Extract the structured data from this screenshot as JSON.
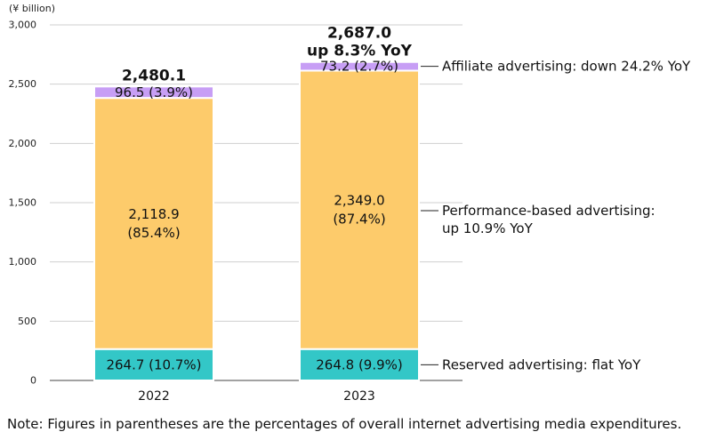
{
  "unit_label": "(¥ billion)",
  "note": "Note: Figures in parentheses are the percentages of overall internet advertising media expenditures.",
  "chart_data": {
    "type": "bar",
    "stacked": true,
    "categories": [
      "2022",
      "2023"
    ],
    "ylim": [
      0,
      3000
    ],
    "yticks": [
      0,
      500,
      1000,
      1500,
      2000,
      2500,
      3000
    ],
    "ytick_labels": [
      "0",
      "500",
      "1,000",
      "1,500",
      "2,000",
      "2,500",
      "3,000"
    ],
    "grid": true,
    "series": [
      {
        "key": "reserved",
        "values": [
          264.7,
          264.8
        ],
        "labels": [
          [
            "264.7 (10.7%)"
          ],
          [
            "264.8 (9.9%)"
          ]
        ],
        "color": "#33c7c7",
        "annotation": [
          "Reserved advertising: flat YoY"
        ]
      },
      {
        "key": "performance",
        "values": [
          2118.9,
          2349.0
        ],
        "labels": [
          [
            "2,118.9",
            "(85.4%)"
          ],
          [
            "2,349.0",
            "(87.4%)"
          ]
        ],
        "color": "#fdcb6b",
        "annotation": [
          "Performance-based advertising:",
          "up 10.9% YoY"
        ]
      },
      {
        "key": "affiliate",
        "values": [
          96.5,
          73.2
        ],
        "labels": [
          [
            "96.5 (3.9%)"
          ],
          [
            "73.2 (2.7%)"
          ]
        ],
        "color": "#c79ef5",
        "annotation": [
          "Affiliate advertising: down 24.2% YoY"
        ]
      }
    ],
    "totals": [
      [
        "2,480.1"
      ],
      [
        "2,687.0",
        "up 8.3% YoY"
      ]
    ]
  }
}
